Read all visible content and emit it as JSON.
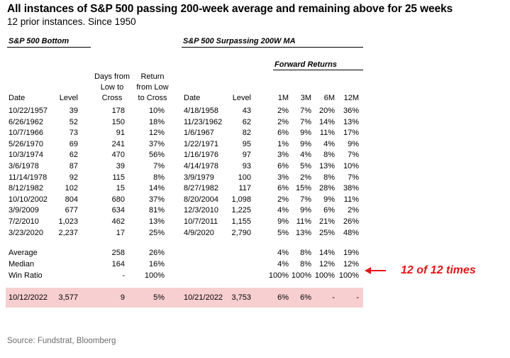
{
  "title": "All instances of S&P 500 passing 200-week average and remaining above for 25 weeks",
  "subtitle": "12 prior instances. Since 1950",
  "left_section": {
    "heading": "S&P 500 Bottom"
  },
  "right_section": {
    "heading": "S&P 500 Surpassing 200W MA",
    "subheading": "Forward Returns"
  },
  "columns": {
    "date": "Date",
    "level": "Level",
    "days_from_low": [
      "Days from",
      "Low to",
      "Cross"
    ],
    "return_from_low": [
      "Return",
      "from Low",
      "to Cross"
    ],
    "cross_date": "Date",
    "cross_level": "Level",
    "m1": "1M",
    "m3": "3M",
    "m6": "6M",
    "m12": "12M"
  },
  "rows": [
    [
      "10/22/1957",
      "39",
      "178",
      "10%",
      "4/18/1958",
      "43",
      "2%",
      "7%",
      "20%",
      "36%"
    ],
    [
      "6/26/1962",
      "52",
      "150",
      "18%",
      "11/23/1962",
      "62",
      "2%",
      "7%",
      "14%",
      "13%"
    ],
    [
      "10/7/1966",
      "73",
      "91",
      "12%",
      "1/6/1967",
      "82",
      "6%",
      "9%",
      "11%",
      "17%"
    ],
    [
      "5/26/1970",
      "69",
      "241",
      "37%",
      "1/22/1971",
      "95",
      "1%",
      "9%",
      "4%",
      "9%"
    ],
    [
      "10/3/1974",
      "62",
      "470",
      "56%",
      "1/16/1976",
      "97",
      "3%",
      "4%",
      "8%",
      "7%"
    ],
    [
      "3/6/1978",
      "87",
      "39",
      "7%",
      "4/14/1978",
      "93",
      "6%",
      "5%",
      "13%",
      "10%"
    ],
    [
      "11/14/1978",
      "92",
      "115",
      "8%",
      "3/9/1979",
      "100",
      "3%",
      "2%",
      "8%",
      "7%"
    ],
    [
      "8/12/1982",
      "102",
      "15",
      "14%",
      "8/27/1982",
      "117",
      "6%",
      "15%",
      "28%",
      "38%"
    ],
    [
      "10/10/2002",
      "804",
      "680",
      "37%",
      "8/20/2004",
      "1,098",
      "2%",
      "7%",
      "9%",
      "11%"
    ],
    [
      "3/9/2009",
      "677",
      "634",
      "81%",
      "12/3/2010",
      "1,225",
      "4%",
      "9%",
      "6%",
      "2%"
    ],
    [
      "7/2/2010",
      "1,023",
      "462",
      "13%",
      "10/7/2011",
      "1,155",
      "9%",
      "11%",
      "21%",
      "26%"
    ],
    [
      "3/23/2020",
      "2,237",
      "17",
      "25%",
      "4/9/2020",
      "2,790",
      "5%",
      "13%",
      "25%",
      "48%"
    ]
  ],
  "summary": [
    {
      "label": "Average",
      "days": "258",
      "ret": "26%",
      "m1": "4%",
      "m3": "8%",
      "m6": "14%",
      "m12": "19%"
    },
    {
      "label": "Median",
      "days": "164",
      "ret": "16%",
      "m1": "4%",
      "m3": "8%",
      "m6": "12%",
      "m12": "12%"
    },
    {
      "label": "Win Ratio",
      "days": "-",
      "ret": "100%",
      "m1": "100%",
      "m3": "100%",
      "m6": "100%",
      "m12": "100%"
    }
  ],
  "current": [
    "10/12/2022",
    "3,577",
    "9",
    "5%",
    "10/21/2022",
    "3,753",
    "6%",
    "6%",
    "-",
    "-"
  ],
  "callout": "12 of 12 times",
  "colors": {
    "highlight_row": "#f8cfd0",
    "callout": "#e2161b",
    "source_text": "#6d6d6d"
  },
  "source": "Source: Fundstrat, Bloomberg"
}
